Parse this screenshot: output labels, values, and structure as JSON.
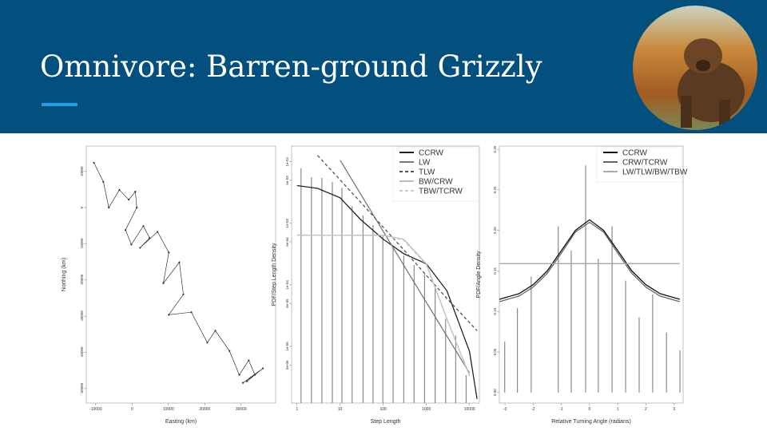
{
  "title": "Omnivore: Barren-ground Grizzly",
  "chart_data": [
    {
      "type": "line",
      "xlabel": "Easting (km)",
      "ylabel": "Northing (km)",
      "xlim": [
        -12600,
        39500
      ],
      "ylim": [
        -54000,
        17000
      ],
      "xticks": [
        -10000,
        0,
        10000,
        20000,
        30000
      ],
      "yticks": [
        -50000,
        -40000,
        -30000,
        -20000,
        -10000,
        0,
        10000
      ],
      "markers": true,
      "series": [
        {
          "color": "#333333",
          "x": [
            -10500,
            -7900,
            -6400,
            -3500,
            -900,
            900,
            1300,
            -1800,
            -200,
            3100,
            4800,
            2200,
            7000,
            10100,
            8600,
            13000,
            14100,
            10100,
            16300,
            20700,
            22900,
            26800,
            29500,
            32100,
            33800,
            30500,
            36000,
            31600
          ],
          "values": [
            12400,
            7100,
            0,
            4900,
            2200,
            4400,
            0,
            -6200,
            -10200,
            -5100,
            -8400,
            -11100,
            -6700,
            -12400,
            -20900,
            -15100,
            -24000,
            -29600,
            -28900,
            -37300,
            -34000,
            -39600,
            -46200,
            -42200,
            -46200,
            -48400,
            -44400,
            -48000
          ]
        }
      ]
    },
    {
      "type": "line",
      "xlabel": "Step Length",
      "ylabel": "PDF/Step Length Density",
      "xlog": true,
      "ylog": true,
      "xlim": [
        0.75,
        17000
      ],
      "ylim": [
        1.2e-06,
        0.018
      ],
      "xticks": [
        1,
        10,
        100,
        1000,
        10000
      ],
      "yticks": [
        {
          "value": 0.01,
          "label": "1e-02"
        },
        {
          "value": 0.005,
          "label": "5e-03"
        },
        {
          "value": 0.001,
          "label": "1e-03"
        },
        {
          "value": 0.0005,
          "label": "5e-04"
        },
        {
          "value": 0.0001,
          "label": "1e-04"
        },
        {
          "value": 5e-05,
          "label": "5e-05"
        },
        {
          "value": 1e-05,
          "label": "1e-05"
        },
        {
          "value": 5e-06,
          "label": "5e-06"
        }
      ],
      "bars": {
        "color": "#8a8a8a",
        "x": [
          1.24,
          2.16,
          3.77,
          6.6,
          11,
          19,
          34,
          58,
          98,
          170,
          300,
          520,
          910,
          1600,
          2800,
          4800,
          8400
        ],
        "values": [
          0.0079,
          0.0056,
          0.0055,
          0.0047,
          0.0038,
          0.0019,
          0.00135,
          0.00094,
          0.00062,
          0.00043,
          0.0003,
          0.00021,
          0.00015,
          9.2e-05,
          2.8e-05,
          1.5e-05,
          3.4e-06
        ]
      },
      "legend": "top-right",
      "series": [
        {
          "name": "CCRW",
          "color": "#222222",
          "x": [
            1,
            3,
            10,
            30,
            100,
            300,
            1000,
            3000,
            10000,
            15000
          ],
          "values": [
            0.0041,
            0.0037,
            0.0026,
            0.00115,
            0.00055,
            0.00032,
            0.00022,
            8e-05,
            8.3e-06,
            1.4e-06
          ]
        },
        {
          "name": "LW",
          "color": "#777777",
          "x": [
            10,
            100,
            1000,
            10000
          ],
          "values": [
            0.0106,
            0.00074,
            5.2e-05,
            3.7e-06
          ]
        },
        {
          "name": "TLW",
          "color": "#555555",
          "dashed": true,
          "x": [
            3,
            30,
            300,
            3000,
            15000
          ],
          "values": [
            0.0127,
            0.0022,
            0.00037,
            6e-05,
            1.8e-05
          ]
        },
        {
          "name": "BW/CRW",
          "color": "#bbbbbb",
          "x": [
            1,
            100,
            300,
            1000,
            3000,
            10000
          ],
          "values": [
            0.00064,
            0.00064,
            0.00055,
            0.00022,
            2.8e-05,
            3.4e-06
          ]
        },
        {
          "name": "TBW/TCRW",
          "color": "#cccccc",
          "dashed": true,
          "x": [
            1,
            100,
            300,
            1000,
            3000,
            10000
          ],
          "values": [
            0.00065,
            0.00063,
            0.00053,
            0.00021,
            2.7e-05,
            3.3e-06
          ]
        }
      ]
    },
    {
      "type": "line",
      "xlabel": "Relative Turning Angle (radians)",
      "ylabel": "PDF/Angle Density",
      "xlim": [
        -3.2,
        3.32
      ],
      "ylim": [
        -0.013,
        0.304
      ],
      "xticks": [
        -3,
        -2,
        -1,
        0,
        1,
        2,
        3
      ],
      "yticks": [
        {
          "value": 0,
          "label": "0.00"
        },
        0.05,
        {
          "value": 0.1,
          "label": "0.10"
        },
        0.15,
        {
          "value": 0.2,
          "label": "0.20"
        },
        0.25,
        {
          "value": 0.3,
          "label": "0.30"
        }
      ],
      "bars": {
        "color": "#8a8a8a",
        "x": [
          -3.01,
          -2.56,
          -2.07,
          -1.11,
          -0.65,
          -0.14,
          0.31,
          0.8,
          1.28,
          1.76,
          2.24,
          2.73,
          3.21
        ],
        "values": [
          0.063,
          0.104,
          0.143,
          0.205,
          0.175,
          0.28,
          0.165,
          0.205,
          0.138,
          0.093,
          0.121,
          0.074,
          0.052
        ]
      },
      "legend": "top-right",
      "series": [
        {
          "name": "CCRW",
          "color": "#111111",
          "x": [
            -3.2,
            -2.5,
            -2,
            -1.5,
            -1,
            -0.5,
            0,
            0.5,
            1,
            1.5,
            2,
            2.5,
            3.2
          ],
          "values": [
            0.115,
            0.122,
            0.133,
            0.15,
            0.175,
            0.2,
            0.213,
            0.2,
            0.175,
            0.15,
            0.133,
            0.122,
            0.115
          ]
        },
        {
          "name": "CRW/TCRW",
          "color": "#666666",
          "x": [
            -3.2,
            -2.5,
            -2,
            -1.5,
            -1,
            -0.5,
            0,
            0.5,
            1,
            1.5,
            2,
            2.5,
            3.2
          ],
          "values": [
            0.112,
            0.119,
            0.13,
            0.147,
            0.172,
            0.198,
            0.21,
            0.198,
            0.172,
            0.147,
            0.13,
            0.119,
            0.112
          ]
        },
        {
          "name": "LW/TLW/BW/TBW",
          "color": "#aaaaaa",
          "x": [
            -3.2,
            3.2
          ],
          "values": [
            0.159,
            0.159
          ]
        }
      ]
    }
  ]
}
